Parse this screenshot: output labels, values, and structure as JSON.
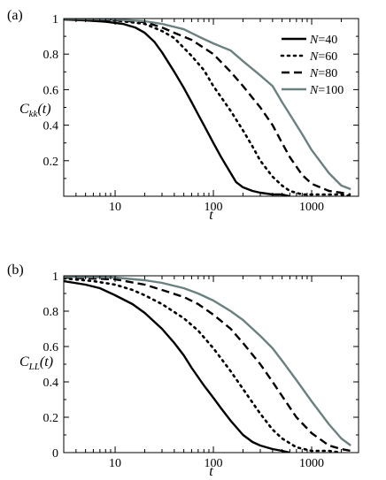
{
  "chart_data": [
    {
      "panel_label": "(a)",
      "type": "line",
      "ylabel": "C_kk(t)",
      "ylabel_main": "C",
      "ylabel_sub": "kk",
      "ylabel_tail": "(t)",
      "xlabel": "t",
      "xscale": "log",
      "xlim": [
        3,
        3000
      ],
      "ylim": [
        0,
        1
      ],
      "xticks": [
        10,
        100,
        1000
      ],
      "xtick_labels": [
        "10",
        "100",
        "1000"
      ],
      "yticks": [
        0.2,
        0.4,
        0.6,
        0.8,
        1
      ],
      "ytick_labels": [
        "0.2",
        "0.4",
        "0.6",
        "0.8",
        "1"
      ],
      "legend": "top-right",
      "series": [
        {
          "name": "N=40",
          "label_prefix": "N",
          "label_suffix": "=40",
          "style": "solid",
          "color": "#000000",
          "points": [
            [
              3,
              0.995
            ],
            [
              5,
              0.99
            ],
            [
              8,
              0.982
            ],
            [
              12,
              0.97
            ],
            [
              16,
              0.95
            ],
            [
              20,
              0.92
            ],
            [
              25,
              0.87
            ],
            [
              30,
              0.81
            ],
            [
              40,
              0.7
            ],
            [
              50,
              0.61
            ],
            [
              60,
              0.53
            ],
            [
              70,
              0.46
            ],
            [
              80,
              0.4
            ],
            [
              100,
              0.3
            ],
            [
              120,
              0.22
            ],
            [
              150,
              0.13
            ],
            [
              170,
              0.08
            ],
            [
              200,
              0.05
            ],
            [
              250,
              0.03
            ],
            [
              300,
              0.02
            ],
            [
              400,
              0.01
            ],
            [
              500,
              0.01
            ],
            [
              600,
              0.0
            ]
          ]
        },
        {
          "name": "N=60",
          "label_prefix": "N",
          "label_suffix": "=60",
          "style": "dotted",
          "color": "#000000",
          "points": [
            [
              3,
              0.998
            ],
            [
              10,
              0.99
            ],
            [
              20,
              0.97
            ],
            [
              30,
              0.93
            ],
            [
              40,
              0.89
            ],
            [
              60,
              0.79
            ],
            [
              80,
              0.71
            ],
            [
              100,
              0.62
            ],
            [
              150,
              0.48
            ],
            [
              200,
              0.37
            ],
            [
              250,
              0.28
            ],
            [
              300,
              0.2
            ],
            [
              400,
              0.11
            ],
            [
              500,
              0.06
            ],
            [
              600,
              0.03
            ],
            [
              800,
              0.01
            ],
            [
              1000,
              0.01
            ],
            [
              1500,
              0.01
            ],
            [
              2000,
              0.01
            ],
            [
              2500,
              0.0
            ]
          ]
        },
        {
          "name": "N=80",
          "label_prefix": "N",
          "label_suffix": "=80",
          "style": "dashed",
          "color": "#000000",
          "points": [
            [
              3,
              0.999
            ],
            [
              10,
              0.99
            ],
            [
              20,
              0.98
            ],
            [
              30,
              0.95
            ],
            [
              40,
              0.92
            ],
            [
              60,
              0.88
            ],
            [
              100,
              0.8
            ],
            [
              150,
              0.7
            ],
            [
              200,
              0.62
            ],
            [
              300,
              0.5
            ],
            [
              400,
              0.4
            ],
            [
              500,
              0.3
            ],
            [
              600,
              0.22
            ],
            [
              800,
              0.12
            ],
            [
              1000,
              0.07
            ],
            [
              1500,
              0.03
            ],
            [
              2000,
              0.02
            ],
            [
              2500,
              0.01
            ]
          ]
        },
        {
          "name": "N=100",
          "label_prefix": "N",
          "label_suffix": "=100",
          "style": "solid",
          "color": "#6b8080",
          "points": [
            [
              3,
              0.999
            ],
            [
              10,
              0.995
            ],
            [
              20,
              0.985
            ],
            [
              30,
              0.97
            ],
            [
              50,
              0.94
            ],
            [
              70,
              0.9
            ],
            [
              100,
              0.86
            ],
            [
              150,
              0.82
            ],
            [
              200,
              0.76
            ],
            [
              300,
              0.68
            ],
            [
              400,
              0.62
            ],
            [
              500,
              0.53
            ],
            [
              600,
              0.46
            ],
            [
              800,
              0.35
            ],
            [
              1000,
              0.26
            ],
            [
              1500,
              0.13
            ],
            [
              2000,
              0.06
            ],
            [
              2500,
              0.04
            ]
          ]
        }
      ]
    },
    {
      "panel_label": "(b)",
      "type": "line",
      "ylabel": "C_LL(t)",
      "ylabel_main": "C",
      "ylabel_sub": "LL",
      "ylabel_tail": "(t)",
      "xlabel": "t",
      "xscale": "log",
      "xlim": [
        3,
        3000
      ],
      "ylim": [
        0,
        1
      ],
      "xticks": [
        10,
        100,
        1000
      ],
      "xtick_labels": [
        "10",
        "100",
        "1000"
      ],
      "yticks": [
        0,
        0.2,
        0.4,
        0.6,
        0.8,
        1
      ],
      "ytick_labels": [
        "0",
        "0.2",
        "0.4",
        "0.6",
        "0.8",
        "1"
      ],
      "series": [
        {
          "name": "N=40",
          "style": "solid",
          "color": "#000000",
          "points": [
            [
              3,
              0.97
            ],
            [
              5,
              0.95
            ],
            [
              7,
              0.93
            ],
            [
              10,
              0.89
            ],
            [
              15,
              0.84
            ],
            [
              20,
              0.79
            ],
            [
              30,
              0.7
            ],
            [
              40,
              0.62
            ],
            [
              50,
              0.55
            ],
            [
              60,
              0.48
            ],
            [
              80,
              0.38
            ],
            [
              100,
              0.31
            ],
            [
              120,
              0.25
            ],
            [
              150,
              0.18
            ],
            [
              200,
              0.1
            ],
            [
              250,
              0.06
            ],
            [
              300,
              0.04
            ],
            [
              400,
              0.02
            ],
            [
              500,
              0.01
            ],
            [
              600,
              0.0
            ]
          ]
        },
        {
          "name": "N=60",
          "style": "dotted",
          "color": "#000000",
          "points": [
            [
              3,
              0.985
            ],
            [
              6,
              0.97
            ],
            [
              10,
              0.95
            ],
            [
              15,
              0.92
            ],
            [
              20,
              0.89
            ],
            [
              30,
              0.84
            ],
            [
              50,
              0.76
            ],
            [
              70,
              0.69
            ],
            [
              100,
              0.59
            ],
            [
              150,
              0.46
            ],
            [
              200,
              0.36
            ],
            [
              300,
              0.22
            ],
            [
              400,
              0.13
            ],
            [
              500,
              0.08
            ],
            [
              700,
              0.03
            ],
            [
              1000,
              0.01
            ],
            [
              1500,
              0.01
            ],
            [
              2000,
              0.0
            ]
          ]
        },
        {
          "name": "N=80",
          "style": "dashed",
          "color": "#000000",
          "points": [
            [
              3,
              0.99
            ],
            [
              10,
              0.98
            ],
            [
              20,
              0.95
            ],
            [
              30,
              0.92
            ],
            [
              50,
              0.88
            ],
            [
              70,
              0.84
            ],
            [
              100,
              0.78
            ],
            [
              150,
              0.7
            ],
            [
              200,
              0.62
            ],
            [
              300,
              0.5
            ],
            [
              400,
              0.4
            ],
            [
              500,
              0.32
            ],
            [
              700,
              0.2
            ],
            [
              1000,
              0.11
            ],
            [
              1500,
              0.04
            ],
            [
              2000,
              0.02
            ],
            [
              2500,
              0.01
            ]
          ]
        },
        {
          "name": "N=100",
          "style": "solid",
          "color": "#6b8080",
          "points": [
            [
              3,
              0.995
            ],
            [
              10,
              0.99
            ],
            [
              20,
              0.975
            ],
            [
              30,
              0.96
            ],
            [
              50,
              0.93
            ],
            [
              70,
              0.9
            ],
            [
              100,
              0.86
            ],
            [
              150,
              0.8
            ],
            [
              200,
              0.75
            ],
            [
              300,
              0.66
            ],
            [
              400,
              0.59
            ],
            [
              500,
              0.52
            ],
            [
              700,
              0.41
            ],
            [
              1000,
              0.29
            ],
            [
              1500,
              0.16
            ],
            [
              2000,
              0.08
            ],
            [
              2500,
              0.04
            ]
          ]
        }
      ]
    }
  ]
}
